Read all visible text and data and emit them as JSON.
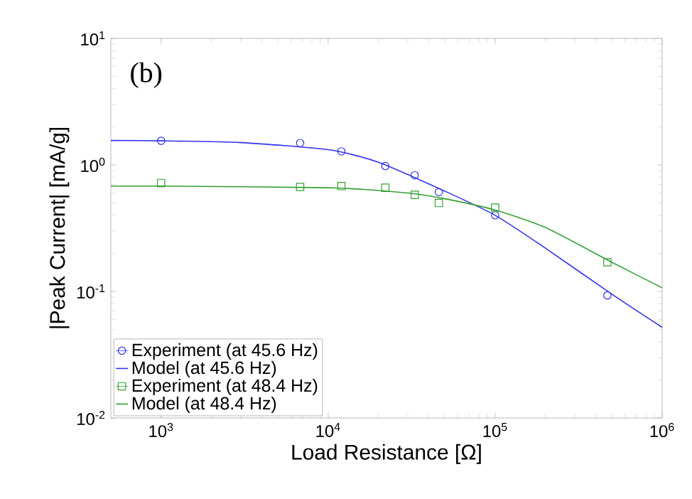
{
  "chart_data": {
    "type": "line",
    "xlabel": "Load Resistance [Ω]",
    "ylabel": "|Peak Current| [mA/g]",
    "log": "xy",
    "legend": "bottom left",
    "grid": false,
    "annotations": [
      "(b)"
    ],
    "xlim": [
      500,
      1000000
    ],
    "ylim": [
      0.01,
      10
    ],
    "xticks": [
      {
        "value": 1000,
        "label": "10$^{3}$"
      },
      {
        "value": 10000,
        "label": "10$^{4}$"
      },
      {
        "value": 100000,
        "label": "10$^{5}$"
      },
      {
        "value": 1000000,
        "label": "10$^{6}$"
      }
    ],
    "yticks": [
      {
        "value": 0.01,
        "label": "10$^{-2}$"
      },
      {
        "value": 0.1,
        "label": "10$^{-1}$"
      },
      {
        "value": 1,
        "label": "10$^{0}$"
      },
      {
        "value": 10,
        "label": "10$^{1}$"
      }
    ],
    "series": [
      {
        "name": "Experiment (at 45.6 Hz)",
        "type": "scatter",
        "marker": "circle",
        "color": "#3333ee",
        "x": [
          1000,
          6800,
          12000,
          22000,
          33000,
          46000,
          100000,
          470000
        ],
        "values": [
          1.55,
          1.49,
          1.28,
          0.98,
          0.83,
          0.61,
          0.4,
          0.093
        ]
      },
      {
        "name": "Model (at 45.6 Hz)",
        "marker": "none",
        "color": "#3333ee",
        "x": [
          500,
          1000,
          3000,
          10000,
          20000,
          50000,
          100000,
          200000,
          500000,
          1000000
        ],
        "values": [
          1.56,
          1.55,
          1.5,
          1.32,
          1.05,
          0.62,
          0.4,
          0.22,
          0.095,
          0.052
        ]
      },
      {
        "name": "Experiment (at 48.4 Hz)",
        "type": "scatter",
        "marker": "square",
        "color": "#33a033",
        "x": [
          1000,
          6800,
          12000,
          22000,
          33000,
          46000,
          100000,
          470000
        ],
        "values": [
          0.72,
          0.67,
          0.68,
          0.66,
          0.58,
          0.5,
          0.46,
          0.17
        ]
      },
      {
        "name": "Model (at 48.4 Hz)",
        "marker": "none",
        "color": "#33a033",
        "x": [
          500,
          1000,
          10000,
          30000,
          50000,
          100000,
          200000,
          500000,
          1000000
        ],
        "values": [
          0.68,
          0.68,
          0.66,
          0.6,
          0.54,
          0.44,
          0.32,
          0.17,
          0.107
        ]
      }
    ]
  }
}
